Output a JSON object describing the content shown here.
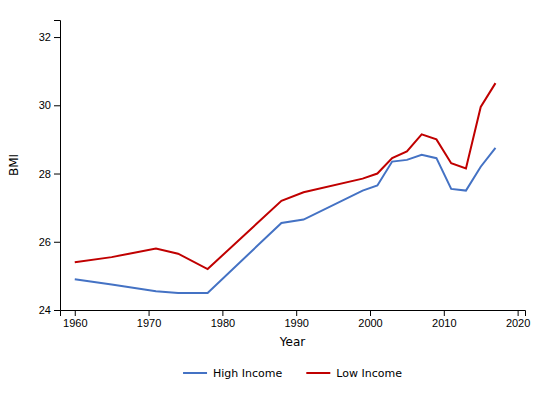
{
  "chart_data": {
    "type": "line",
    "x": [
      1960,
      1965,
      1971,
      1974,
      1978,
      1988,
      1991,
      1999,
      2001,
      2003,
      2005,
      2007,
      2009,
      2011,
      2013,
      2015,
      2017
    ],
    "series": [
      {
        "name": "High Income",
        "color": "#4472C4",
        "values": [
          24.9,
          24.75,
          24.55,
          24.5,
          24.5,
          26.55,
          26.65,
          27.5,
          27.65,
          28.35,
          28.4,
          28.55,
          28.45,
          27.55,
          27.5,
          28.2,
          28.75
        ]
      },
      {
        "name": "Low Income",
        "color": "#C00000",
        "values": [
          25.4,
          25.55,
          25.8,
          25.65,
          25.2,
          27.2,
          27.45,
          27.85,
          28.0,
          28.45,
          28.65,
          29.15,
          29.0,
          28.3,
          28.15,
          29.95,
          30.65
        ]
      }
    ],
    "xlabel": "Year",
    "ylabel": "BMI",
    "xlim": [
      1958,
      2021
    ],
    "ylim": [
      24.0,
      32.5
    ],
    "xticks": [
      1960,
      1970,
      1980,
      1990,
      2000,
      2010,
      2020
    ],
    "yticks": [
      24,
      26,
      28,
      30,
      32
    ],
    "legend": "bottom"
  }
}
